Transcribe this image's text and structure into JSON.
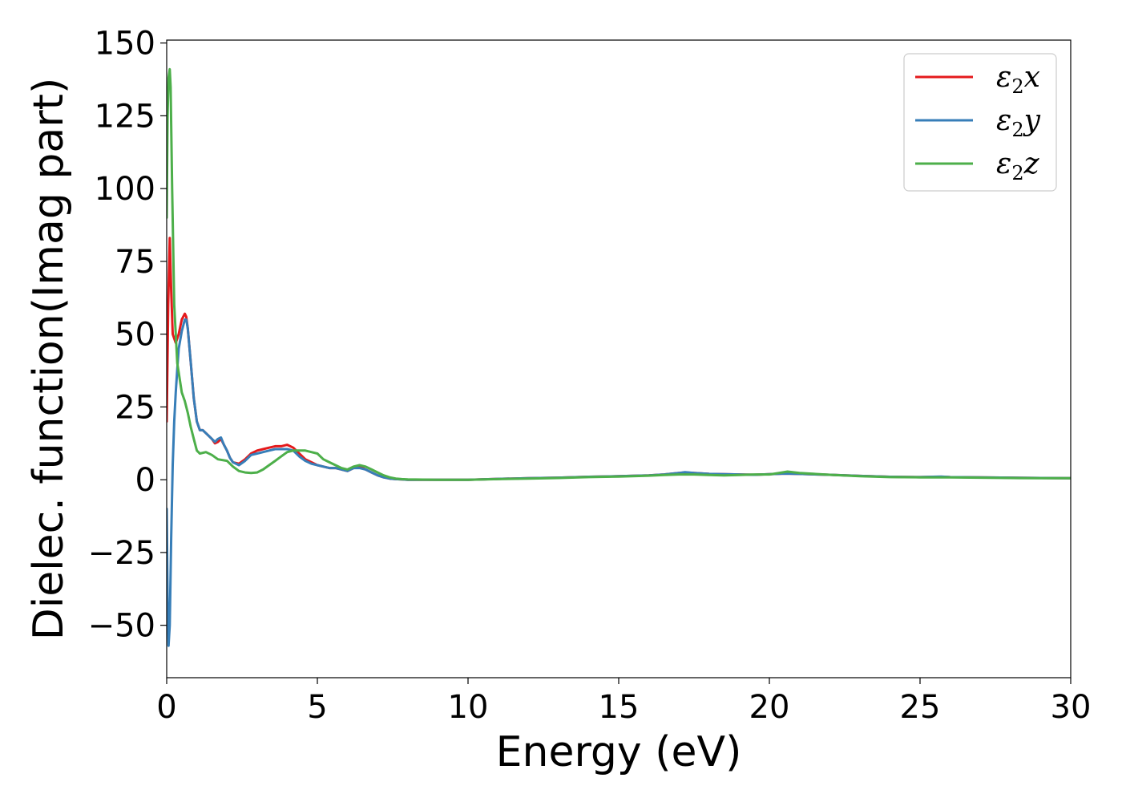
{
  "chart_data": {
    "type": "line",
    "title": "",
    "xlabel": "Energy (eV)",
    "ylabel": "Dielec. function(Imag part)",
    "xlim": [
      0,
      30
    ],
    "ylim": [
      -68,
      151
    ],
    "xticks": [
      0,
      5,
      10,
      15,
      20,
      25,
      30
    ],
    "yticks": [
      -50,
      -25,
      0,
      25,
      50,
      75,
      100,
      125,
      150
    ],
    "grid": false,
    "legend_position": "top-right",
    "series": [
      {
        "name": "ε2x",
        "label_main": "ε",
        "label_sub": "2",
        "label_var": "x",
        "color": "#e41a1c",
        "x": [
          0,
          0.05,
          0.1,
          0.15,
          0.2,
          0.3,
          0.4,
          0.5,
          0.6,
          0.65,
          0.7,
          0.8,
          0.9,
          1.0,
          1.1,
          1.2,
          1.3,
          1.5,
          1.6,
          1.7,
          1.8,
          1.9,
          2.0,
          2.1,
          2.2,
          2.4,
          2.6,
          2.8,
          3.0,
          3.2,
          3.4,
          3.6,
          3.8,
          4.0,
          4.2,
          4.4,
          4.6,
          4.8,
          5.0,
          5.2,
          5.4,
          5.6,
          5.8,
          6.0,
          6.2,
          6.4,
          6.6,
          6.8,
          7.0,
          7.2,
          7.4,
          7.6,
          7.8,
          8.0,
          9.0,
          10.0,
          11.0,
          12.0,
          13.0,
          14.0,
          15.0,
          16.0,
          16.5,
          17.0,
          17.2,
          17.5,
          18.0,
          18.5,
          19.0,
          19.5,
          20.0,
          20.5,
          21.0,
          22.0,
          23.0,
          24.0,
          25.0,
          25.7,
          26.0,
          27.0,
          28.0,
          29.0,
          30.0
        ],
        "values": [
          20,
          60,
          83,
          65,
          50,
          47,
          50,
          55,
          57,
          56,
          52,
          40,
          28,
          20,
          17,
          17,
          16,
          14,
          12.5,
          13,
          14,
          12,
          10,
          7.5,
          6,
          5.5,
          7,
          9,
          10,
          10.5,
          11,
          11.5,
          11.5,
          12,
          11,
          9,
          7,
          6,
          5,
          4.5,
          4,
          4,
          3.5,
          3,
          4,
          4.5,
          3.5,
          2.5,
          1.5,
          0.8,
          0.4,
          0.2,
          0.1,
          0,
          0,
          0,
          0.3,
          0.5,
          0.7,
          1,
          1.2,
          1.5,
          1.8,
          2.3,
          2.5,
          2.3,
          2,
          1.9,
          1.8,
          1.7,
          1.9,
          2.1,
          2.0,
          1.7,
          1.3,
          1.0,
          0.9,
          1.0,
          0.9,
          0.8,
          0.7,
          0.6,
          0.5
        ]
      },
      {
        "name": "ε2y",
        "label_main": "ε",
        "label_sub": "2",
        "label_var": "y",
        "color": "#377eb8",
        "x": [
          0,
          0.03,
          0.06,
          0.1,
          0.15,
          0.2,
          0.25,
          0.3,
          0.35,
          0.4,
          0.5,
          0.6,
          0.65,
          0.7,
          0.8,
          0.9,
          1.0,
          1.1,
          1.2,
          1.3,
          1.5,
          1.6,
          1.7,
          1.8,
          1.9,
          2.0,
          2.1,
          2.2,
          2.4,
          2.6,
          2.8,
          3.0,
          3.2,
          3.4,
          3.6,
          3.8,
          4.0,
          4.2,
          4.4,
          4.6,
          4.8,
          5.0,
          5.2,
          5.4,
          5.6,
          5.8,
          6.0,
          6.2,
          6.4,
          6.6,
          6.8,
          7.0,
          7.2,
          7.4,
          7.6,
          7.8,
          8.0,
          9.0,
          10.0,
          11.0,
          12.0,
          13.0,
          14.0,
          15.0,
          16.0,
          16.5,
          17.0,
          17.2,
          17.5,
          18.0,
          18.5,
          19.0,
          19.5,
          20.0,
          20.5,
          21.0,
          22.0,
          23.0,
          24.0,
          25.0,
          25.7,
          26.0,
          27.0,
          28.0,
          29.0,
          30.0
        ],
        "values": [
          -10,
          -40,
          -57,
          -50,
          -20,
          5,
          20,
          30,
          38,
          45,
          51,
          55,
          55,
          52,
          40,
          28,
          20,
          17,
          17,
          16,
          14,
          13,
          14,
          14.5,
          12,
          10,
          7.5,
          6,
          5,
          6.5,
          8.5,
          9,
          9.5,
          10,
          10.5,
          10.5,
          10.5,
          10,
          8,
          6.5,
          5.5,
          5,
          4.5,
          4,
          4,
          3.5,
          3,
          4,
          4,
          3.5,
          2.5,
          1.5,
          0.8,
          0.4,
          0.2,
          0.1,
          0,
          0,
          0,
          0.3,
          0.5,
          0.7,
          1,
          1.2,
          1.5,
          1.8,
          2.3,
          2.6,
          2.3,
          2,
          1.9,
          1.8,
          1.7,
          1.9,
          2.1,
          2.0,
          1.7,
          1.3,
          1.0,
          0.9,
          1.1,
          0.9,
          0.8,
          0.7,
          0.6,
          0.5
        ]
      },
      {
        "name": "ε2z",
        "label_main": "ε",
        "label_sub": "2",
        "label_var": "z",
        "color": "#4daf4a",
        "x": [
          0,
          0.03,
          0.06,
          0.1,
          0.13,
          0.18,
          0.25,
          0.35,
          0.5,
          0.6,
          0.7,
          0.8,
          0.9,
          1.0,
          1.1,
          1.3,
          1.5,
          1.7,
          2.0,
          2.2,
          2.4,
          2.6,
          2.8,
          3.0,
          3.2,
          3.4,
          3.6,
          3.8,
          4.0,
          4.2,
          4.4,
          4.6,
          4.8,
          5.0,
          5.2,
          5.4,
          5.6,
          5.8,
          6.0,
          6.2,
          6.4,
          6.6,
          6.8,
          7.0,
          7.2,
          7.4,
          7.6,
          7.8,
          8.0,
          9.0,
          10.0,
          11.0,
          12.0,
          13.0,
          14.0,
          15.0,
          16.0,
          16.5,
          17.0,
          17.5,
          18.0,
          18.5,
          19.0,
          19.5,
          20.0,
          20.3,
          20.6,
          21.0,
          22.0,
          23.0,
          24.0,
          25.0,
          26.0,
          27.0,
          28.0,
          29.0,
          30.0
        ],
        "values": [
          90,
          125,
          138,
          141,
          135,
          100,
          60,
          40,
          30,
          27,
          23,
          18,
          14,
          10,
          9,
          9.5,
          8.5,
          7,
          6.5,
          4.5,
          3,
          2.5,
          2.3,
          2.5,
          3.5,
          5,
          6.5,
          8,
          9.5,
          10,
          10,
          10,
          9.5,
          9,
          7,
          6,
          5,
          4,
          3.5,
          4.5,
          5,
          4.5,
          3.5,
          2.5,
          1.5,
          0.8,
          0.4,
          0.2,
          0.1,
          0,
          0,
          0.2,
          0.4,
          0.6,
          0.9,
          1.1,
          1.4,
          1.6,
          1.8,
          1.8,
          1.6,
          1.5,
          1.6,
          1.8,
          1.8,
          2.3,
          2.8,
          2.3,
          1.7,
          1.2,
          0.9,
          0.8,
          0.8,
          0.7,
          0.6,
          0.5,
          0.5
        ]
      }
    ]
  }
}
